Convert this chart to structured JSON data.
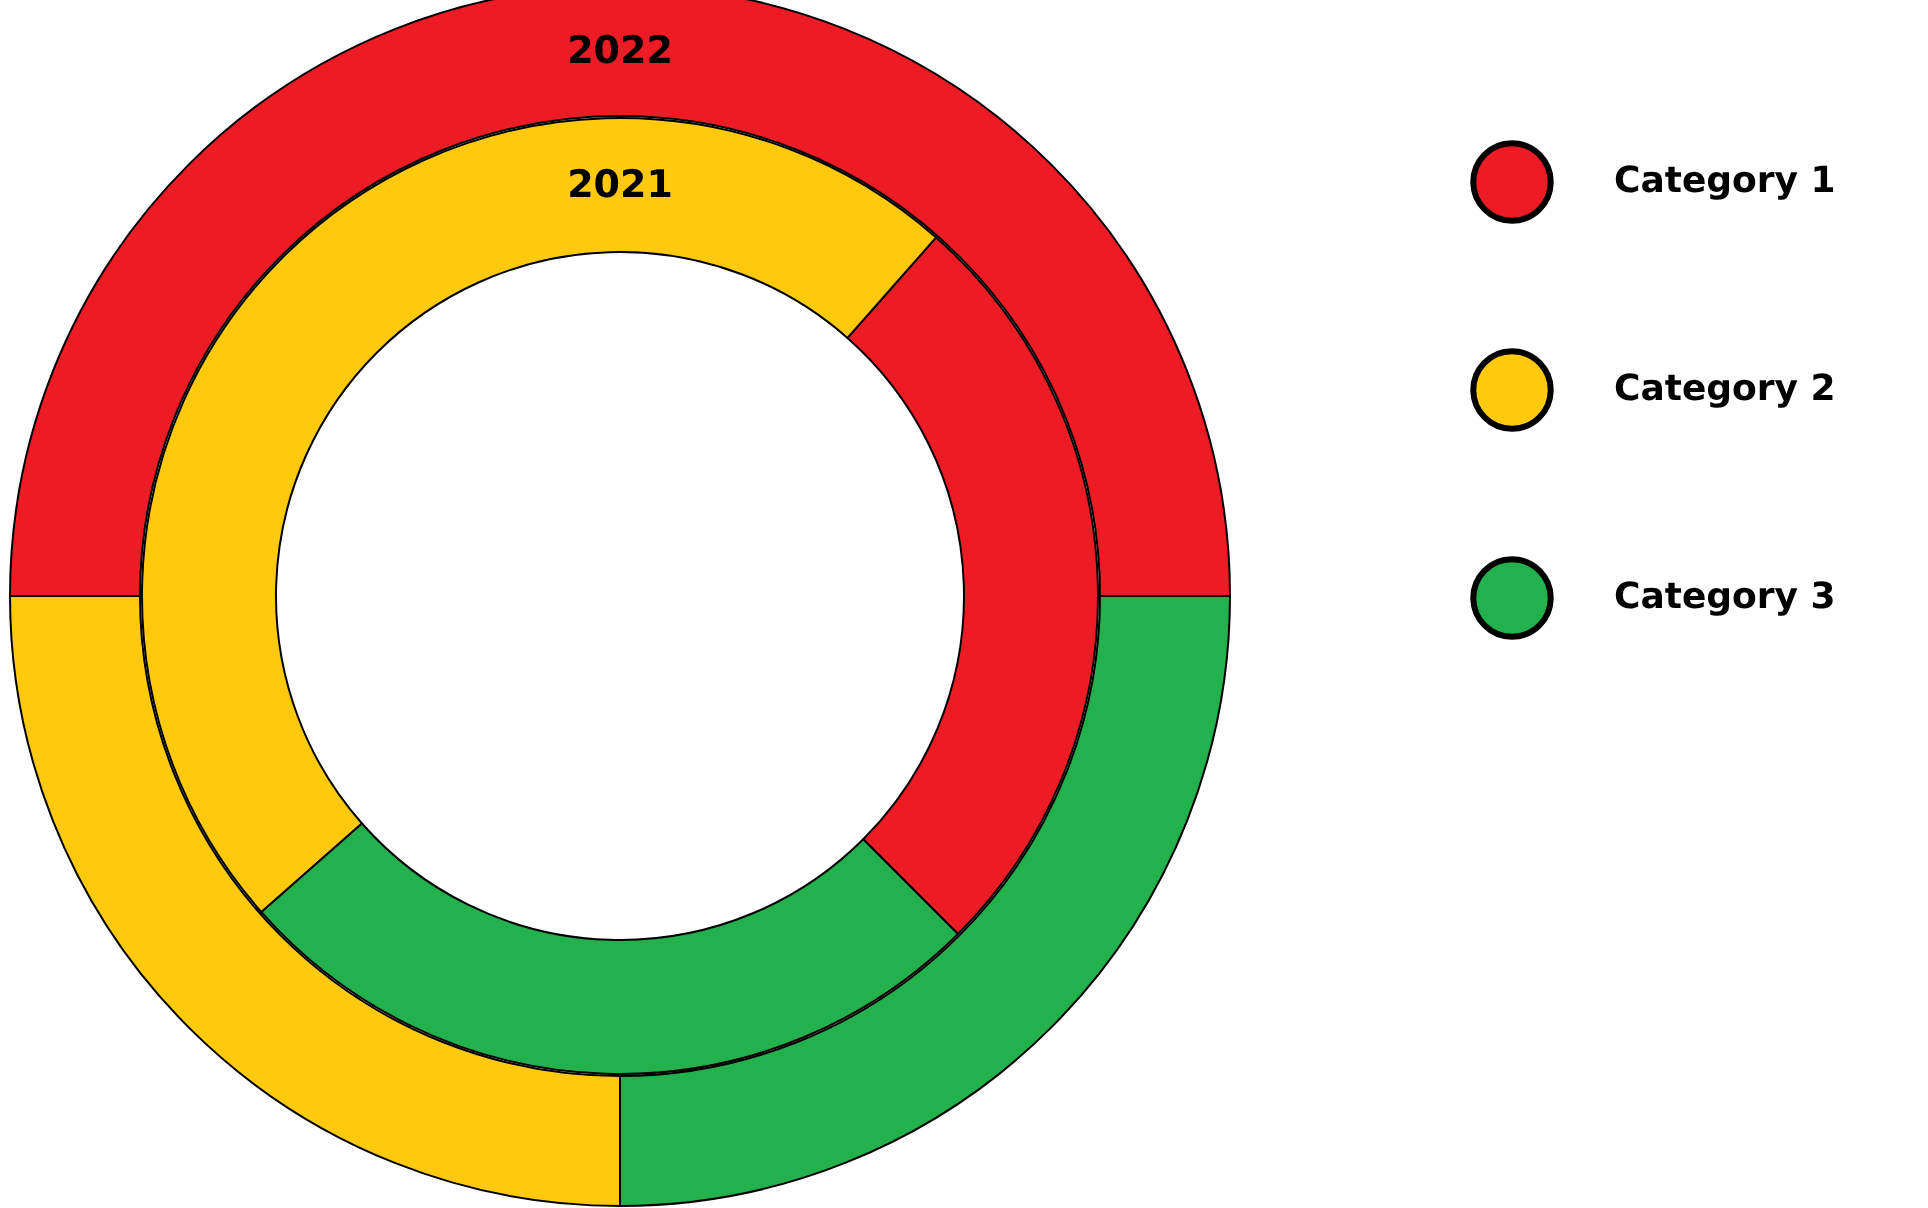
{
  "chart_data": {
    "type": "donut",
    "categories": [
      "Category 1",
      "Category 2",
      "Category 3"
    ],
    "colors": [
      "#ed1c24",
      "#ffc90e",
      "#22b14c"
    ],
    "series": [
      {
        "name": "2022",
        "values": [
          50,
          25,
          25
        ]
      },
      {
        "name": "2021",
        "values": [
          26,
          48,
          26
        ]
      }
    ],
    "legend": "top right"
  }
}
